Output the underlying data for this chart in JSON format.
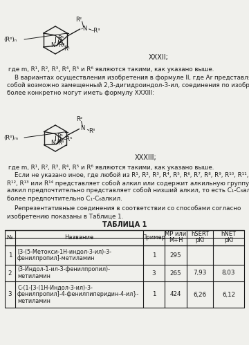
{
  "bg_color": "#f0f0ec",
  "para1": "где m, R¹, R², R³, R⁴, R⁵ и R⁶ являются такими, как указано выше.",
  "para2_lines": [
    "    В вариантах осуществления изобретения в формуле II, где Ar представляет",
    "собой возможно замещенный 2,3-дигидроиндол-3-ил, соединения по изобретению",
    "более конкретно могут иметь формулу XXXIII:"
  ],
  "para3": "где m, R¹, R², R³, R⁴, R⁵ и R⁶ являются такими, как указано выше.",
  "para4_lines": [
    "    Если не указано иное, где любой из R¹, R², R³, R⁴, R⁵, R⁶, R⁷, R⁸, R⁹, R¹⁰, R¹¹,",
    "R¹², R¹³ или R¹⁴ представляет собой алкил или содержит алкильную группу, такой",
    "алкил предпочтительно представляет собой низший алкил, то есть C₁-C₈алкил, и",
    "более предпочтительно C₁-C₆алкил."
  ],
  "para5_lines": [
    "    Репрезентативные соединения в соответствии со способами согласно",
    "изобретению показаны в Таблице 1."
  ],
  "table_title": "ТАБЛИЦА 1",
  "col_headers": [
    "№",
    "Название",
    "Пример",
    "MP или\nM+H",
    "hSERT\npKi",
    "hNET\npKi"
  ],
  "rows": [
    [
      "1",
      "[3-(5-Метокси-1H-индол-3-ил)-3-\nфенилпропил]-метиламин",
      "1",
      "295",
      "",
      ""
    ],
    [
      "2",
      "(3-Индол-1-ил-3-фенилпропил)-\nметиламин",
      "3",
      "265",
      "7,93",
      "8,03"
    ],
    [
      "3",
      "С-(1-[3-(1H-Индол-3-ил)-3-\nфенилпропил]-4-фенилпиперидин-4-ил}-\nметиламин",
      "1",
      "424",
      "6,26",
      "6,12"
    ]
  ],
  "xxxii_label": "XXXII;",
  "xxxiii_label": "XXXIII;"
}
